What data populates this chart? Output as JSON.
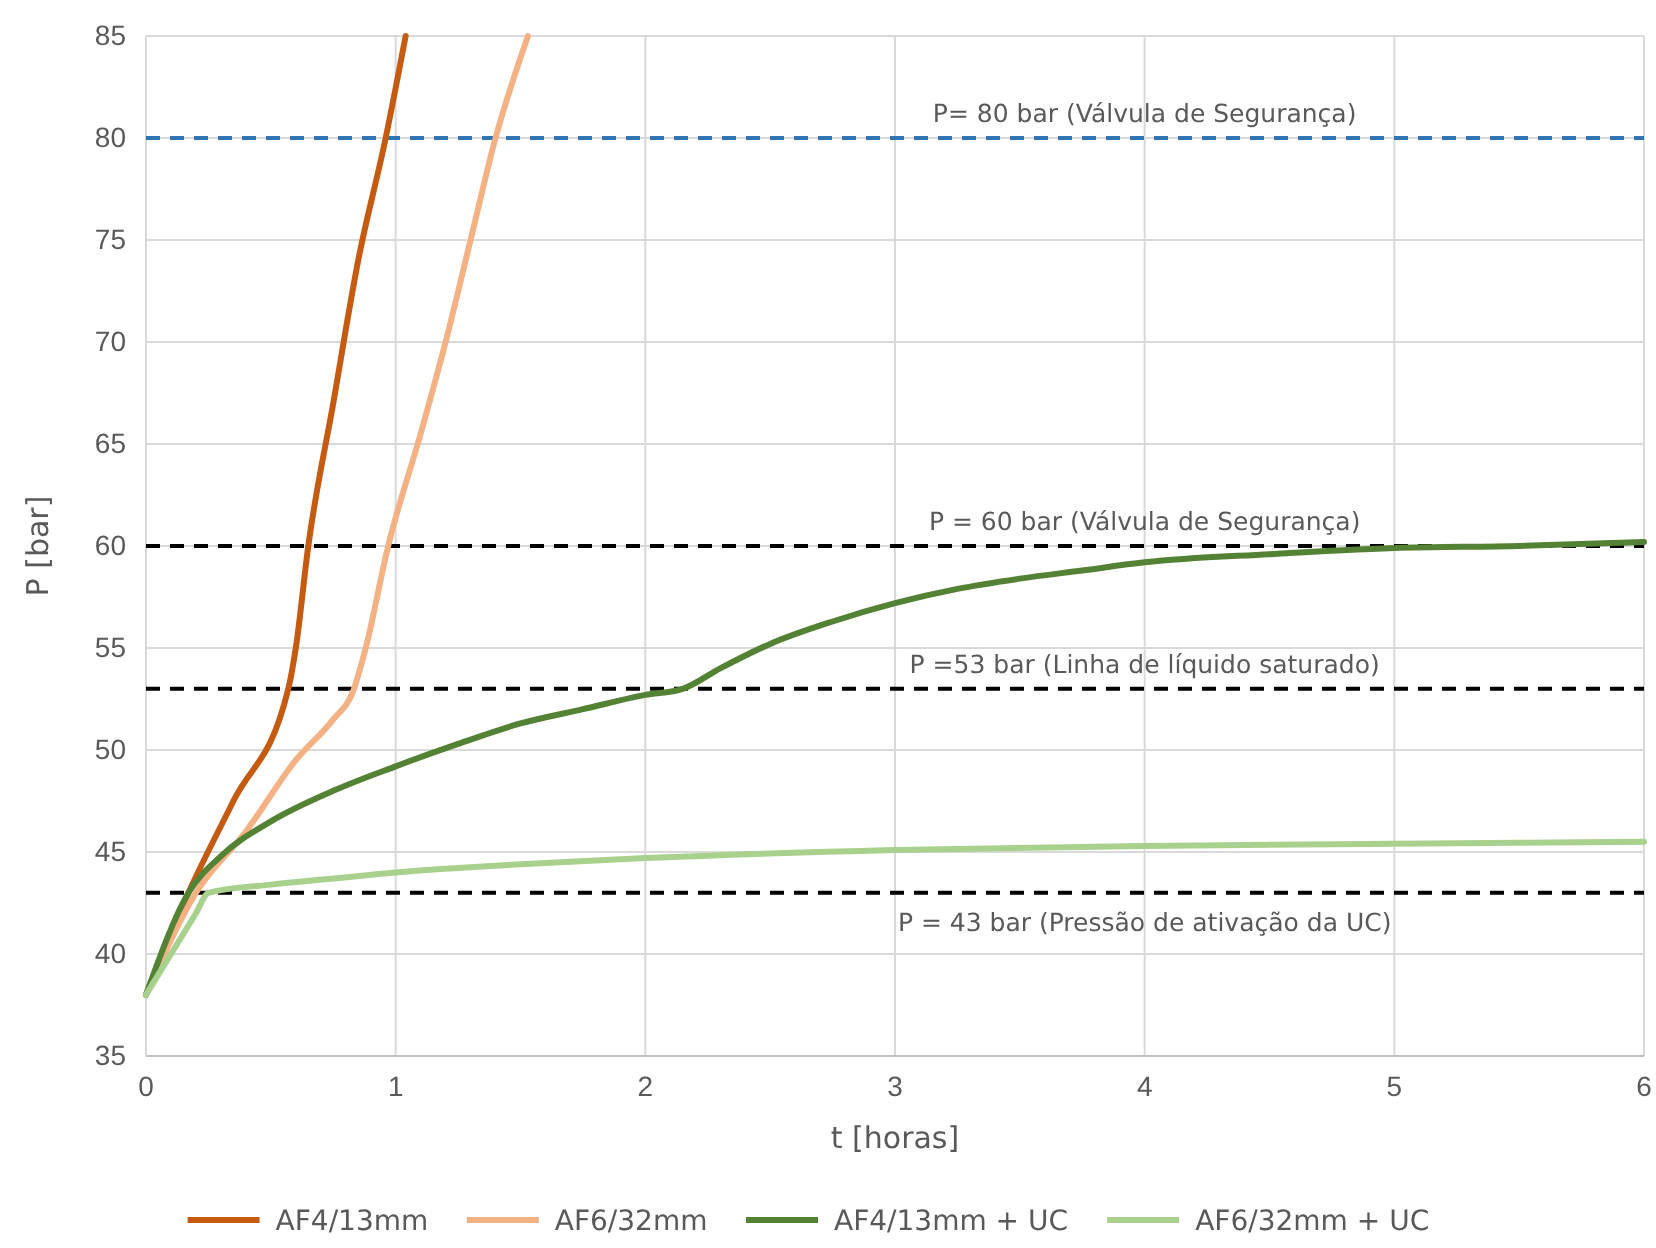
{
  "chart_data": {
    "type": "line",
    "xlabel": "t [horas]",
    "ylabel": "P [bar]",
    "xlim": [
      0,
      6
    ],
    "xticks": [
      0,
      1,
      2,
      3,
      4,
      5,
      6
    ],
    "ylim": [
      35,
      85
    ],
    "yticks": [
      35,
      40,
      45,
      50,
      55,
      60,
      65,
      70,
      75,
      80,
      85
    ],
    "grid": true,
    "legend": "bottom",
    "marker": "none",
    "line_style": "solid",
    "series": [
      {
        "name": "AF4/13mm",
        "color": "#c55a11",
        "x": [
          0,
          0.17,
          0.35,
          0.57,
          0.6,
          0.65,
          0.75,
          0.85,
          0.96,
          1.04
        ],
        "values": [
          38,
          43,
          47.5,
          53,
          55,
          60,
          67,
          74,
          80,
          85
        ]
      },
      {
        "name": "AF6/32mm",
        "color": "#f4b183",
        "x": [
          0,
          0.2,
          0.4,
          0.6,
          0.75,
          0.83,
          0.88,
          0.97,
          1.1,
          1.2,
          1.3,
          1.4,
          1.53
        ],
        "values": [
          38,
          43,
          46,
          49.5,
          51.5,
          52.9,
          55,
          60,
          65.5,
          70,
          75,
          80,
          85
        ]
      },
      {
        "name": "AF4/13mm + UC",
        "color": "#548235",
        "x": [
          0,
          0.17,
          0.3,
          0.5,
          0.75,
          1,
          1.25,
          1.5,
          1.75,
          2,
          2.15,
          2.3,
          2.5,
          2.75,
          3,
          3.25,
          3.5,
          3.75,
          4,
          4.5,
          5,
          5.5,
          6
        ],
        "values": [
          38,
          43,
          44.8,
          46.5,
          48,
          49.2,
          50.3,
          51.3,
          52,
          52.7,
          53,
          54,
          55.2,
          56.3,
          57.2,
          57.9,
          58.4,
          58.8,
          59.2,
          59.6,
          59.9,
          60,
          60.2
        ]
      },
      {
        "name": "AF6/32mm + UC",
        "color": "#a9d18e",
        "x": [
          0,
          0.2,
          0.25,
          0.5,
          0.75,
          1,
          1.5,
          2,
          3,
          4,
          5,
          6
        ],
        "values": [
          38,
          42,
          43,
          43.4,
          43.7,
          44,
          44.4,
          44.7,
          45.1,
          45.3,
          45.4,
          45.5
        ]
      }
    ],
    "ref_lines": [
      {
        "axis": "y",
        "value": 80,
        "label": "P= 80 bar (Válvula de Segurança)",
        "color": "#2e75b6",
        "line_style": "dashed"
      },
      {
        "axis": "y",
        "value": 60,
        "label": "P = 60 bar (Válvula de Segurança)",
        "color": "#000000",
        "line_style": "dashed"
      },
      {
        "axis": "y",
        "value": 53,
        "label": "P =53 bar (Linha de líquido saturado)",
        "color": "#000000",
        "line_style": "dashed"
      },
      {
        "axis": "y",
        "value": 43,
        "label": "P = 43 bar (Pressão de ativação da UC)",
        "color": "#000000",
        "line_style": "dashed"
      }
    ]
  }
}
